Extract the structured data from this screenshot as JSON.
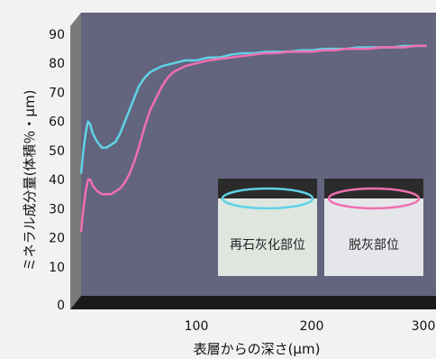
{
  "chart_data": {
    "type": "line",
    "xlabel": "表層からの深さ(μm)",
    "ylabel": "ミネラル成分量(体積％・μm)",
    "xlim": [
      0,
      300
    ],
    "ylim": [
      0,
      90
    ],
    "xticks": [
      "100",
      "200",
      "300"
    ],
    "yticks": [
      "0",
      "10",
      "20",
      "30",
      "40",
      "50",
      "60",
      "70",
      "80",
      "90"
    ],
    "grid": false,
    "series": [
      {
        "name": "再石灰化部位",
        "color": "#5fd3e6",
        "x": [
          0,
          2,
          4,
          6,
          8,
          10,
          14,
          18,
          22,
          26,
          30,
          34,
          38,
          42,
          46,
          50,
          55,
          60,
          65,
          70,
          80,
          90,
          100,
          110,
          120,
          130,
          140,
          150,
          160,
          170,
          180,
          190,
          200,
          210,
          220,
          230,
          240,
          250,
          260,
          270,
          280,
          290,
          300
        ],
        "values": [
          42,
          50,
          56,
          60,
          59,
          56,
          53,
          51,
          51,
          52,
          53,
          56,
          60,
          64,
          68,
          72,
          75,
          77,
          78,
          79,
          80,
          81,
          81,
          82,
          82,
          83,
          83.5,
          83.5,
          84,
          84,
          84,
          84.5,
          84.5,
          85,
          85,
          85,
          85.5,
          85.5,
          85.5,
          85.5,
          86,
          86,
          86
        ]
      },
      {
        "name": "脱灰部位",
        "color": "#f06fb0",
        "x": [
          0,
          2,
          4,
          6,
          8,
          10,
          14,
          18,
          22,
          26,
          30,
          34,
          38,
          42,
          46,
          50,
          55,
          60,
          65,
          70,
          75,
          80,
          90,
          100,
          110,
          120,
          130,
          140,
          150,
          160,
          170,
          180,
          190,
          200,
          210,
          220,
          230,
          240,
          250,
          260,
          270,
          280,
          290,
          300
        ],
        "values": [
          22,
          30,
          36,
          40,
          40,
          38,
          36,
          35,
          35,
          35,
          36,
          37,
          39,
          42,
          46,
          51,
          58,
          64,
          68,
          72,
          75,
          77,
          79,
          80,
          81,
          81.5,
          82,
          82.5,
          83,
          83.5,
          83.5,
          84,
          84,
          84,
          84.5,
          84.5,
          85,
          85,
          85,
          85.5,
          85.5,
          85.5,
          86,
          86
        ]
      }
    ]
  },
  "inset": {
    "remineralized_label": "再石灰化部位",
    "demineralized_label": "脱灰部位",
    "remineralized_color": "#5fd3e6",
    "demineralized_color": "#f06fb0"
  },
  "colors": {
    "plot_background": "#63647e",
    "wall_left": "#7a7a7a",
    "floor": "#1a1a1a",
    "page_background": "#f2f2f2"
  }
}
